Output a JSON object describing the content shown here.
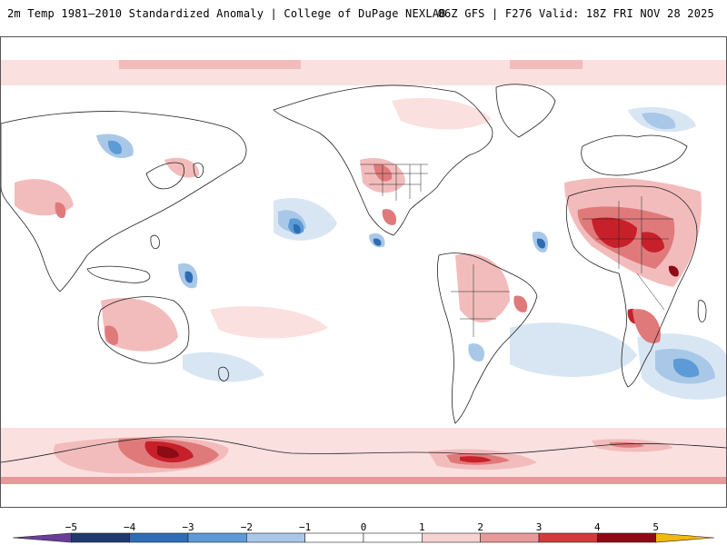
{
  "header": {
    "left_title": "2m Temp 1981–2010 Standardized Anomaly | College of DuPage NEXLAB",
    "right_title": "06Z GFS | F276 Valid: 18Z FRI NOV 28 2025"
  },
  "legend": {
    "ticks": [
      "−5",
      "−4",
      "−3",
      "−2",
      "−1",
      "0",
      "1",
      "2",
      "3",
      "4",
      "5"
    ],
    "tick_values": [
      -5,
      -4,
      -3,
      -2,
      -1,
      0,
      1,
      2,
      3,
      4,
      5
    ],
    "range": [
      -6,
      6
    ],
    "bins": [
      {
        "from": -6,
        "to": -5,
        "color": "#6a3d9a"
      },
      {
        "from": -5,
        "to": -4,
        "color": "#1f3a70"
      },
      {
        "from": -4,
        "to": -3,
        "color": "#2e6db4"
      },
      {
        "from": -3,
        "to": -2,
        "color": "#5c9bd6"
      },
      {
        "from": -2,
        "to": -1,
        "color": "#a9c8e8"
      },
      {
        "from": -1,
        "to": 0,
        "color": "#ffffff"
      },
      {
        "from": 0,
        "to": 1,
        "color": "#ffffff"
      },
      {
        "from": 1,
        "to": 2,
        "color": "#f6d2d2"
      },
      {
        "from": 2,
        "to": 3,
        "color": "#e79a9a"
      },
      {
        "from": 3,
        "to": 4,
        "color": "#d13b3b"
      },
      {
        "from": 4,
        "to": 5,
        "color": "#8e0a14"
      },
      {
        "from": 5,
        "to": 6,
        "color": "#f2b90c"
      }
    ]
  },
  "colors": {
    "light_blue": "#d8e6f4",
    "mid_blue": "#a9c8e8",
    "blue": "#5c9bd6",
    "dark_blue": "#2e6db4",
    "light_red": "#fbe0e0",
    "mid_red": "#f3bcbc",
    "red": "#e07a7a",
    "dark_red": "#c8202a",
    "deep_red": "#8e0a14",
    "coast": "#222222"
  }
}
